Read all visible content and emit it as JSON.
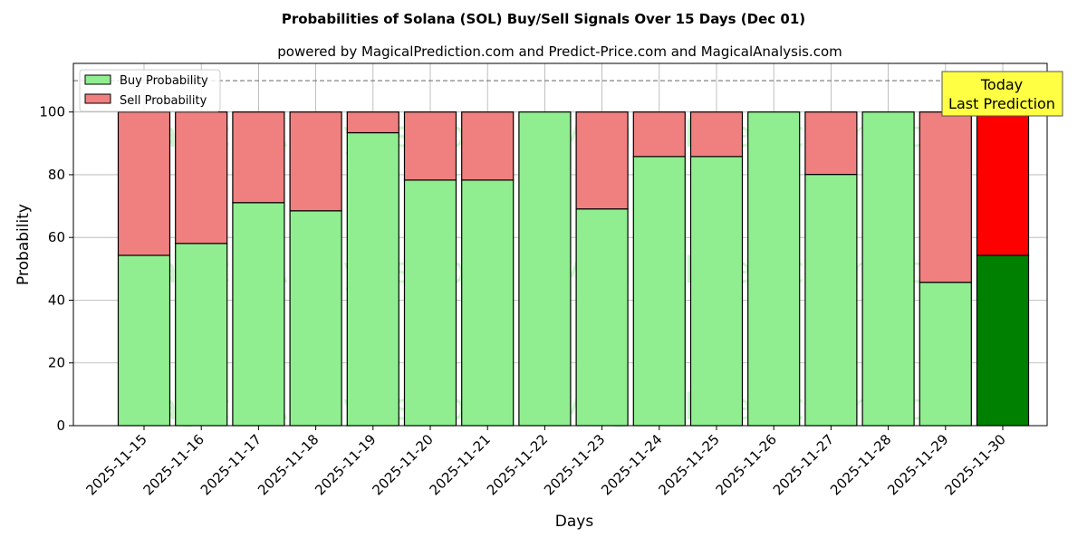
{
  "chart_data": {
    "type": "bar",
    "stacked": true,
    "title": "Probabilities of Solana (SOL) Buy/Sell Signals Over 15 Days (Dec 01)",
    "subtitle": "powered by MagicalPrediction.com and Predict-Price.com and MagicalAnalysis.com",
    "xlabel": "Days",
    "ylabel": "Probability",
    "ylim": [
      0,
      115.5
    ],
    "yticks": [
      0,
      20,
      40,
      60,
      80,
      100
    ],
    "grid": true,
    "legend_position": "top-left",
    "categories": [
      "2025-11-15",
      "2025-11-16",
      "2025-11-17",
      "2025-11-18",
      "2025-11-19",
      "2025-11-20",
      "2025-11-21",
      "2025-11-22",
      "2025-11-23",
      "2025-11-24",
      "2025-11-25",
      "2025-11-26",
      "2025-11-27",
      "2025-11-28",
      "2025-11-29",
      "2025-11-30"
    ],
    "series": [
      {
        "name": "Buy Probability",
        "color": "#90ee90",
        "values": [
          54.3,
          58.1,
          71.1,
          68.5,
          93.4,
          78.3,
          78.3,
          100,
          69.1,
          85.8,
          85.8,
          100,
          80.1,
          100,
          45.7,
          54.3
        ]
      },
      {
        "name": "Sell Probability",
        "color": "#f08080",
        "values": [
          45.7,
          41.9,
          28.9,
          31.5,
          6.6,
          21.7,
          21.7,
          0,
          30.9,
          14.2,
          14.2,
          0,
          19.9,
          0,
          54.3,
          45.7
        ]
      }
    ],
    "today_colors": {
      "buy": "#008000",
      "sell": "#ff0000"
    },
    "reference_line": 110,
    "annotation": {
      "line1": "Today",
      "line2": "Last Prediction"
    },
    "watermarks": [
      "MagicalAnalysis.com",
      "MagicalPrediction.com"
    ]
  }
}
